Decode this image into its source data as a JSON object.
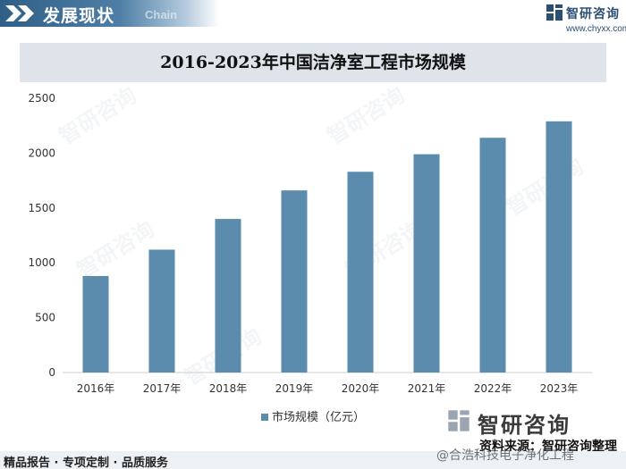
{
  "header": {
    "section_title": "发展现状",
    "ghost_text": "Chain",
    "brand_name": "智研咨询",
    "brand_url": "www.chyxx.com"
  },
  "chart_data": {
    "type": "bar",
    "title": "2016-2023年中国洁净室工程市场规模",
    "categories": [
      "2016年",
      "2017年",
      "2018年",
      "2019年",
      "2020年",
      "2021年",
      "2022年",
      "2023年"
    ],
    "series": [
      {
        "name": "市场规模（亿元）",
        "values": [
          880,
          1120,
          1400,
          1660,
          1830,
          1990,
          2140,
          2290
        ]
      }
    ],
    "ylim": [
      0,
      2500
    ],
    "yticks": [
      0,
      500,
      1000,
      1500,
      2000,
      2500
    ],
    "grid": false,
    "legend_position": "bottom",
    "bar_color": "#5b8cad"
  },
  "footer": {
    "logo_text": "智研咨询",
    "source": "资料来源：智研咨询整理",
    "tagline": "精品报告 · 专项定制 · 品质服务",
    "weibo_text": "@合浩科技电子净化工程"
  }
}
